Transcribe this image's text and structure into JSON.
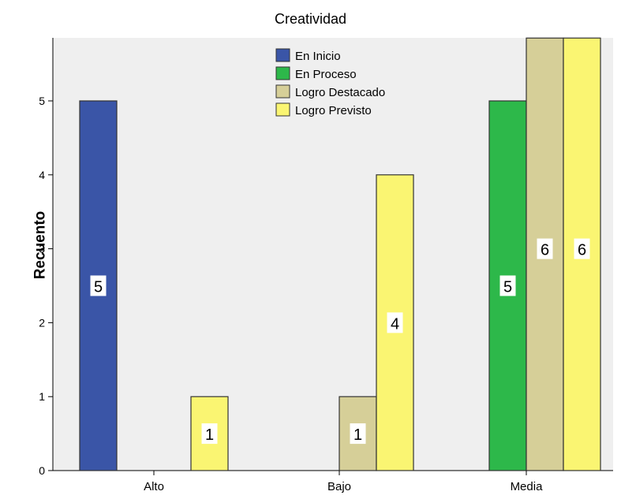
{
  "chart_data": {
    "type": "bar",
    "title": "Creatividad",
    "xlabel": "",
    "ylabel": "Recuento",
    "categories": [
      "Alto",
      "Bajo",
      "Media"
    ],
    "series": [
      {
        "name": "En Inicio",
        "color": "#3a55a7",
        "values": [
          5,
          0,
          0
        ]
      },
      {
        "name": "En Proceso",
        "color": "#2db84a",
        "values": [
          0,
          0,
          5
        ]
      },
      {
        "name": "Logro Destacado",
        "color": "#d6cf98",
        "values": [
          0,
          1,
          6
        ]
      },
      {
        "name": "Logro Previsto",
        "color": "#faf572",
        "values": [
          1,
          4,
          6
        ]
      }
    ],
    "ylim": [
      0,
      5.8
    ],
    "yticks": [
      0,
      1,
      2,
      3,
      4,
      5
    ],
    "plot_background": "#efefef",
    "legend_placement": "top-center"
  }
}
